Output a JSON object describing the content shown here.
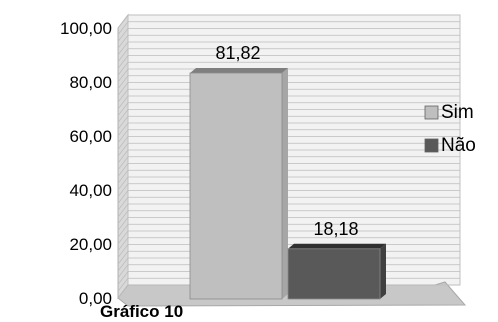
{
  "chart_data": {
    "type": "bar",
    "three_d": true,
    "categories": [
      "Sim",
      "Não"
    ],
    "values": [
      81.82,
      18.18
    ],
    "data_labels": [
      "81,82",
      "18,18"
    ],
    "y_ticks": [
      "0,00",
      "20,00",
      "40,00",
      "60,00",
      "80,00",
      "100,00"
    ],
    "ylim": [
      0,
      100
    ],
    "grid": true,
    "legend": {
      "position": "right",
      "items": [
        "Sim",
        "Não"
      ]
    },
    "caption": "Gráfico 10",
    "colors": {
      "Sim": "#bfbfbf",
      "Não": "#595959",
      "grid": "#bdbdbd",
      "floor": "#c8c8c8"
    }
  }
}
